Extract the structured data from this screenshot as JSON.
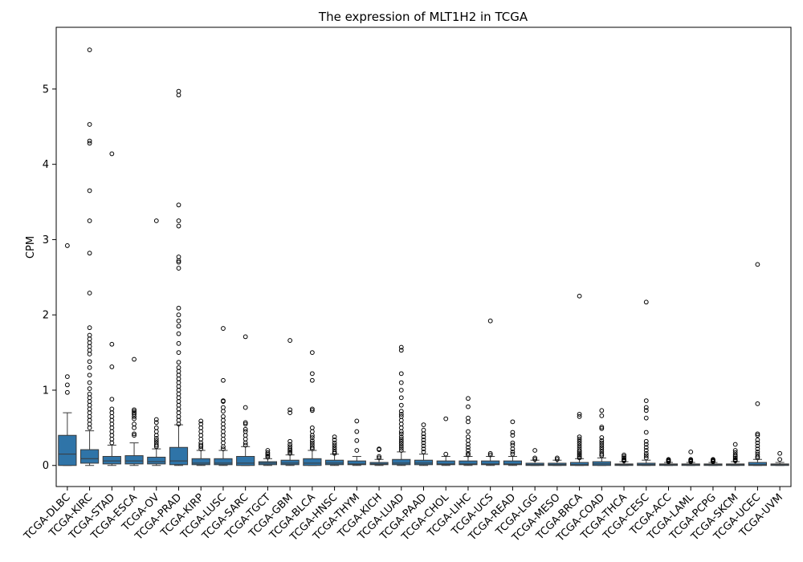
{
  "chart_data": {
    "type": "box",
    "title": "The expression of MLT1H2 in TCGA",
    "xlabel": "",
    "ylabel": "CPM",
    "ylim": [
      -0.28,
      5.82
    ],
    "yticks": [
      0,
      1,
      2,
      3,
      4,
      5
    ],
    "grid": false,
    "box_color": "#2f74a8",
    "categories": [
      "TCGA-DLBC",
      "TCGA-KIRC",
      "TCGA-STAD",
      "TCGA-ESCA",
      "TCGA-OV",
      "TCGA-PRAD",
      "TCGA-KIRP",
      "TCGA-LUSC",
      "TCGA-SARC",
      "TCGA-TGCT",
      "TCGA-GBM",
      "TCGA-BLCA",
      "TCGA-HNSC",
      "TCGA-THYM",
      "TCGA-KICH",
      "TCGA-LUAD",
      "TCGA-PAAD",
      "TCGA-CHOL",
      "TCGA-LIHC",
      "TCGA-UCS",
      "TCGA-READ",
      "TCGA-LGG",
      "TCGA-MESO",
      "TCGA-BRCA",
      "TCGA-COAD",
      "TCGA-THCA",
      "TCGA-CESC",
      "TCGA-ACC",
      "TCGA-LAML",
      "TCGA-PCPG",
      "TCGA-SKCM",
      "TCGA-UCEC",
      "TCGA-UVM"
    ],
    "boxes": [
      {
        "min": 0.0,
        "q1": 0.0,
        "median": 0.15,
        "q3": 0.4,
        "max": 0.7,
        "outliers": [
          2.92,
          1.18,
          1.07,
          0.97
        ]
      },
      {
        "min": 0.0,
        "q1": 0.03,
        "median": 0.09,
        "q3": 0.21,
        "max": 0.46,
        "outliers": [
          5.52,
          4.53,
          4.31,
          4.28,
          3.65,
          3.25,
          2.82,
          2.29,
          1.83,
          1.73,
          1.68,
          1.63,
          1.58,
          1.53,
          1.48,
          1.38,
          1.3,
          1.2,
          1.1,
          1.02,
          0.95,
          0.9,
          0.85,
          0.8,
          0.75,
          0.7,
          0.65,
          0.6,
          0.55,
          0.5
        ]
      },
      {
        "min": 0.0,
        "q1": 0.02,
        "median": 0.06,
        "q3": 0.12,
        "max": 0.27,
        "outliers": [
          4.14,
          1.61,
          1.31,
          0.88,
          0.75,
          0.7,
          0.65,
          0.6,
          0.55,
          0.5,
          0.45,
          0.4,
          0.35,
          0.3
        ]
      },
      {
        "min": 0.0,
        "q1": 0.02,
        "median": 0.06,
        "q3": 0.13,
        "max": 0.3,
        "outliers": [
          1.41,
          0.74,
          0.72,
          0.7,
          0.68,
          0.65,
          0.62,
          0.55,
          0.5,
          0.42,
          0.4
        ]
      },
      {
        "min": 0.0,
        "q1": 0.02,
        "median": 0.05,
        "q3": 0.11,
        "max": 0.22,
        "outliers": [
          3.25,
          0.61,
          0.57,
          0.5,
          0.45,
          0.4,
          0.36,
          0.33,
          0.3,
          0.27,
          0.25
        ]
      },
      {
        "min": 0.0,
        "q1": 0.01,
        "median": 0.06,
        "q3": 0.24,
        "max": 0.54,
        "outliers": [
          4.97,
          4.92,
          3.46,
          3.25,
          3.18,
          2.77,
          2.72,
          2.7,
          2.62,
          2.09,
          2.0,
          1.92,
          1.85,
          1.75,
          1.62,
          1.5,
          1.37,
          1.3,
          1.25,
          1.2,
          1.15,
          1.1,
          1.05,
          1.0,
          0.95,
          0.9,
          0.85,
          0.8,
          0.75,
          0.7,
          0.65,
          0.6,
          0.55
        ]
      },
      {
        "min": 0.0,
        "q1": 0.01,
        "median": 0.03,
        "q3": 0.09,
        "max": 0.2,
        "outliers": [
          0.59,
          0.55,
          0.5,
          0.45,
          0.4,
          0.35,
          0.3,
          0.27,
          0.25,
          0.22
        ]
      },
      {
        "min": 0.0,
        "q1": 0.01,
        "median": 0.03,
        "q3": 0.09,
        "max": 0.2,
        "outliers": [
          1.82,
          1.13,
          0.86,
          0.85,
          0.77,
          0.72,
          0.65,
          0.6,
          0.55,
          0.5,
          0.45,
          0.4,
          0.35,
          0.3,
          0.25,
          0.22
        ]
      },
      {
        "min": 0.0,
        "q1": 0.0,
        "median": 0.03,
        "q3": 0.12,
        "max": 0.25,
        "outliers": [
          1.71,
          0.77,
          0.57,
          0.55,
          0.48,
          0.45,
          0.4,
          0.35,
          0.3,
          0.27
        ]
      },
      {
        "min": 0.0,
        "q1": 0.01,
        "median": 0.03,
        "q3": 0.05,
        "max": 0.09,
        "outliers": [
          0.2,
          0.17,
          0.15,
          0.13,
          0.11
        ]
      },
      {
        "min": 0.0,
        "q1": 0.01,
        "median": 0.03,
        "q3": 0.07,
        "max": 0.14,
        "outliers": [
          1.66,
          0.74,
          0.7,
          0.32,
          0.28,
          0.25,
          0.22,
          0.2,
          0.18,
          0.16
        ]
      },
      {
        "min": 0.0,
        "q1": 0.0,
        "median": 0.03,
        "q3": 0.09,
        "max": 0.2,
        "outliers": [
          1.5,
          1.22,
          1.13,
          0.75,
          0.73,
          0.5,
          0.45,
          0.4,
          0.37,
          0.33,
          0.3,
          0.27,
          0.24,
          0.22
        ]
      },
      {
        "min": 0.0,
        "q1": 0.01,
        "median": 0.03,
        "q3": 0.07,
        "max": 0.15,
        "outliers": [
          0.38,
          0.34,
          0.3,
          0.27,
          0.24,
          0.21,
          0.18,
          0.16
        ]
      },
      {
        "min": 0.0,
        "q1": 0.01,
        "median": 0.02,
        "q3": 0.06,
        "max": 0.12,
        "outliers": [
          0.59,
          0.45,
          0.33,
          0.2
        ]
      },
      {
        "min": 0.0,
        "q1": 0.01,
        "median": 0.02,
        "q3": 0.04,
        "max": 0.08,
        "outliers": [
          0.22,
          0.21,
          0.12,
          0.1
        ]
      },
      {
        "min": 0.0,
        "q1": 0.01,
        "median": 0.03,
        "q3": 0.08,
        "max": 0.18,
        "outliers": [
          1.57,
          1.53,
          1.22,
          1.1,
          1.0,
          0.9,
          0.8,
          0.72,
          0.68,
          0.65,
          0.6,
          0.55,
          0.5,
          0.45,
          0.42,
          0.38,
          0.35,
          0.32,
          0.29,
          0.26,
          0.23,
          0.2
        ]
      },
      {
        "min": 0.0,
        "q1": 0.01,
        "median": 0.03,
        "q3": 0.07,
        "max": 0.15,
        "outliers": [
          0.54,
          0.47,
          0.42,
          0.38,
          0.34,
          0.3,
          0.26,
          0.22,
          0.18
        ]
      },
      {
        "min": 0.0,
        "q1": 0.01,
        "median": 0.02,
        "q3": 0.06,
        "max": 0.12,
        "outliers": [
          0.62,
          0.15
        ]
      },
      {
        "min": 0.0,
        "q1": 0.01,
        "median": 0.02,
        "q3": 0.06,
        "max": 0.12,
        "outliers": [
          0.89,
          0.78,
          0.63,
          0.58,
          0.45,
          0.38,
          0.33,
          0.28,
          0.24,
          0.2,
          0.16,
          0.14
        ]
      },
      {
        "min": 0.0,
        "q1": 0.01,
        "median": 0.02,
        "q3": 0.06,
        "max": 0.12,
        "outliers": [
          1.92,
          0.16,
          0.14
        ]
      },
      {
        "min": 0.0,
        "q1": 0.01,
        "median": 0.02,
        "q3": 0.06,
        "max": 0.12,
        "outliers": [
          0.58,
          0.44,
          0.4,
          0.3,
          0.27,
          0.22,
          0.18,
          0.15
        ]
      },
      {
        "min": 0.0,
        "q1": 0.0,
        "median": 0.01,
        "q3": 0.03,
        "max": 0.07,
        "outliers": [
          0.2,
          0.1,
          0.08
        ]
      },
      {
        "min": 0.0,
        "q1": 0.0,
        "median": 0.01,
        "q3": 0.03,
        "max": 0.07,
        "outliers": [
          0.1,
          0.08
        ]
      },
      {
        "min": 0.0,
        "q1": 0.0,
        "median": 0.01,
        "q3": 0.04,
        "max": 0.09,
        "outliers": [
          2.25,
          0.68,
          0.65,
          0.38,
          0.35,
          0.32,
          0.29,
          0.26,
          0.23,
          0.2,
          0.18,
          0.16,
          0.14,
          0.12,
          0.1
        ]
      },
      {
        "min": 0.0,
        "q1": 0.0,
        "median": 0.02,
        "q3": 0.05,
        "max": 0.1,
        "outliers": [
          0.73,
          0.66,
          0.51,
          0.49,
          0.37,
          0.33,
          0.3,
          0.27,
          0.24,
          0.21,
          0.18,
          0.15,
          0.13
        ]
      },
      {
        "min": 0.0,
        "q1": 0.0,
        "median": 0.01,
        "q3": 0.02,
        "max": 0.05,
        "outliers": [
          0.14,
          0.12,
          0.1,
          0.08,
          0.07,
          0.06
        ]
      },
      {
        "min": 0.0,
        "q1": 0.0,
        "median": 0.01,
        "q3": 0.03,
        "max": 0.07,
        "outliers": [
          2.17,
          0.86,
          0.77,
          0.73,
          0.63,
          0.44,
          0.32,
          0.28,
          0.24,
          0.2,
          0.16,
          0.13,
          0.1
        ]
      },
      {
        "min": 0.0,
        "q1": 0.0,
        "median": 0.01,
        "q3": 0.02,
        "max": 0.04,
        "outliers": [
          0.08,
          0.07,
          0.06,
          0.05
        ]
      },
      {
        "min": 0.0,
        "q1": 0.0,
        "median": 0.01,
        "q3": 0.02,
        "max": 0.04,
        "outliers": [
          0.18,
          0.08,
          0.07,
          0.06,
          0.05
        ]
      },
      {
        "min": 0.0,
        "q1": 0.0,
        "median": 0.01,
        "q3": 0.02,
        "max": 0.04,
        "outliers": [
          0.08,
          0.07,
          0.06,
          0.05
        ]
      },
      {
        "min": 0.0,
        "q1": 0.0,
        "median": 0.01,
        "q3": 0.02,
        "max": 0.05,
        "outliers": [
          0.28,
          0.2,
          0.17,
          0.14,
          0.12,
          0.1,
          0.08,
          0.07,
          0.06
        ]
      },
      {
        "min": 0.0,
        "q1": 0.0,
        "median": 0.01,
        "q3": 0.04,
        "max": 0.08,
        "outliers": [
          2.67,
          0.82,
          0.42,
          0.4,
          0.34,
          0.3,
          0.26,
          0.22,
          0.18,
          0.15,
          0.12,
          0.1
        ]
      },
      {
        "min": 0.0,
        "q1": 0.0,
        "median": 0.01,
        "q3": 0.02,
        "max": 0.04,
        "outliers": [
          0.16,
          0.08
        ]
      }
    ]
  }
}
